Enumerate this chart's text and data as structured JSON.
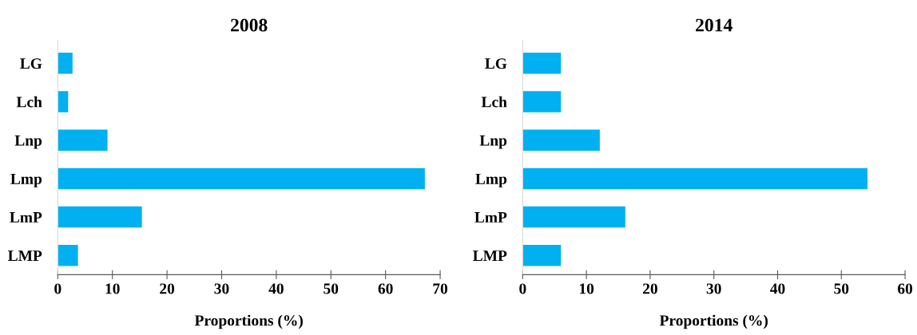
{
  "chart_data": [
    {
      "type": "bar",
      "orientation": "horizontal",
      "title": "2008",
      "xlabel": "Proportions (%)",
      "categories": [
        "LG",
        "Lch",
        "Lnp",
        "Lmp",
        "LmP",
        "LMP"
      ],
      "values": [
        2.7,
        1.9,
        9.1,
        67.2,
        15.4,
        3.7
      ],
      "color": "#00b0f0",
      "xlim": [
        0,
        70
      ],
      "xticks": [
        0,
        10,
        20,
        30,
        40,
        50,
        60,
        70
      ],
      "grid": false
    },
    {
      "type": "bar",
      "orientation": "horizontal",
      "title": "2014",
      "xlabel": "Proportions (%)",
      "categories": [
        "LG",
        "Lch",
        "Lnp",
        "Lmp",
        "LmP",
        "LMP"
      ],
      "values": [
        6.0,
        6.0,
        12.1,
        54.1,
        16.1,
        6.0
      ],
      "color": "#00b0f0",
      "xlim": [
        0,
        60
      ],
      "xticks": [
        0,
        10,
        20,
        30,
        40,
        50,
        60
      ],
      "grid": false
    }
  ]
}
